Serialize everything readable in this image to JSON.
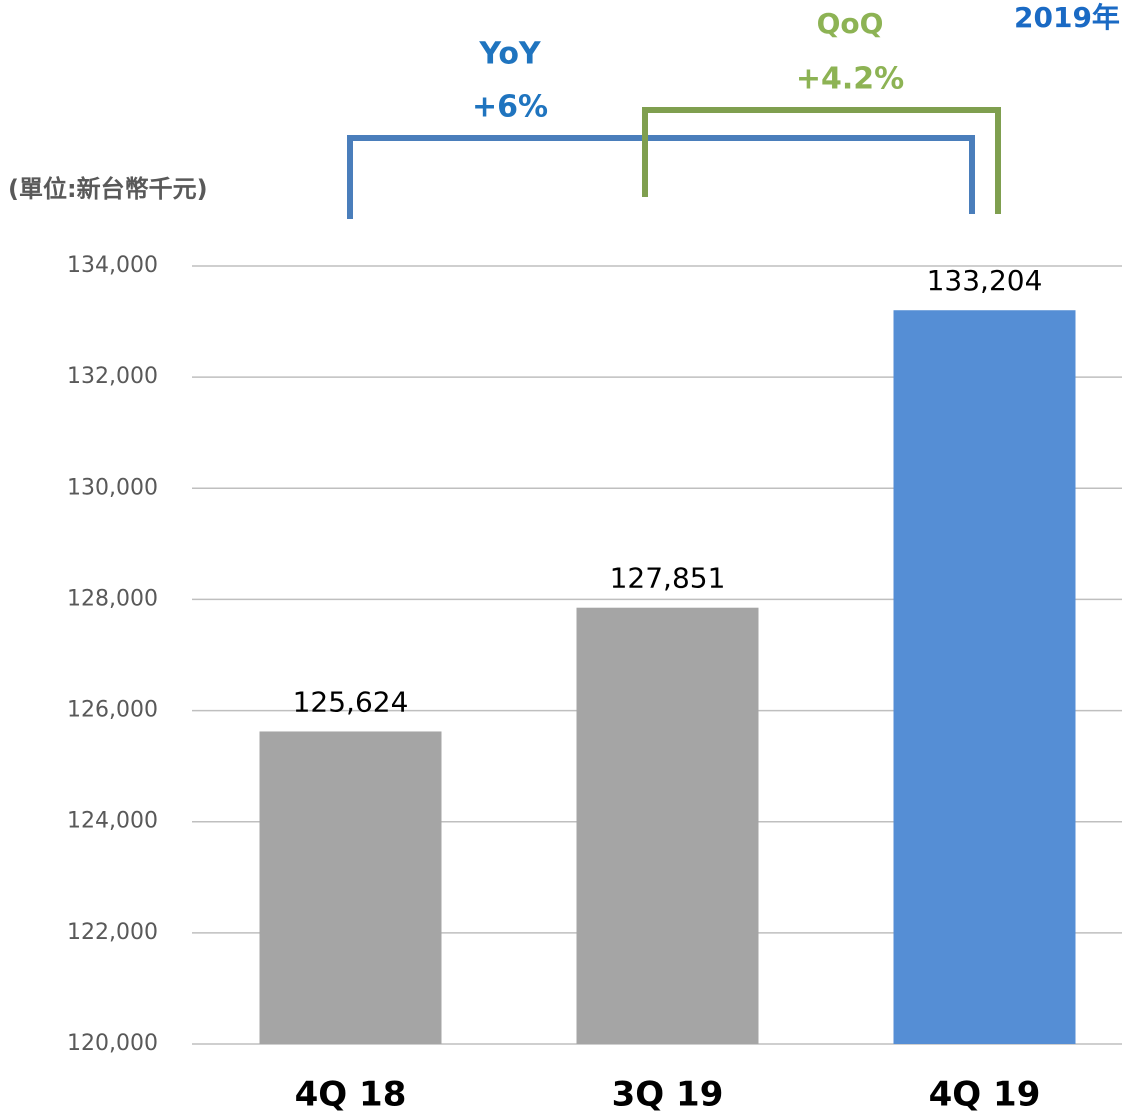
{
  "chart_data": {
    "type": "bar",
    "annotations": {
      "unit": "(單位:新台幣千元)",
      "yoy_title": "YoY",
      "yoy_value": "+6%",
      "qoq_title": "QoQ",
      "qoq_value": "+4.2%",
      "corner": "2019年"
    },
    "categories": [
      "4Q 18",
      "3Q 19",
      "4Q 19"
    ],
    "values": [
      125624,
      127851,
      133204
    ],
    "value_labels": [
      "125,624",
      "127,851",
      "133,204"
    ],
    "colors": [
      "#a5a5a5",
      "#a5a5a5",
      "#558ed5"
    ],
    "ylim": [
      120000,
      134000
    ],
    "yticks": [
      {
        "value": 120000,
        "label": "120,000"
      },
      {
        "value": 122000,
        "label": "122,000"
      },
      {
        "value": 124000,
        "label": "124,000"
      },
      {
        "value": 126000,
        "label": "126,000"
      },
      {
        "value": 128000,
        "label": "128,000"
      },
      {
        "value": 130000,
        "label": "130,000"
      },
      {
        "value": 132000,
        "label": "132,000"
      },
      {
        "value": 134000,
        "label": "134,000"
      }
    ],
    "grid": true
  }
}
